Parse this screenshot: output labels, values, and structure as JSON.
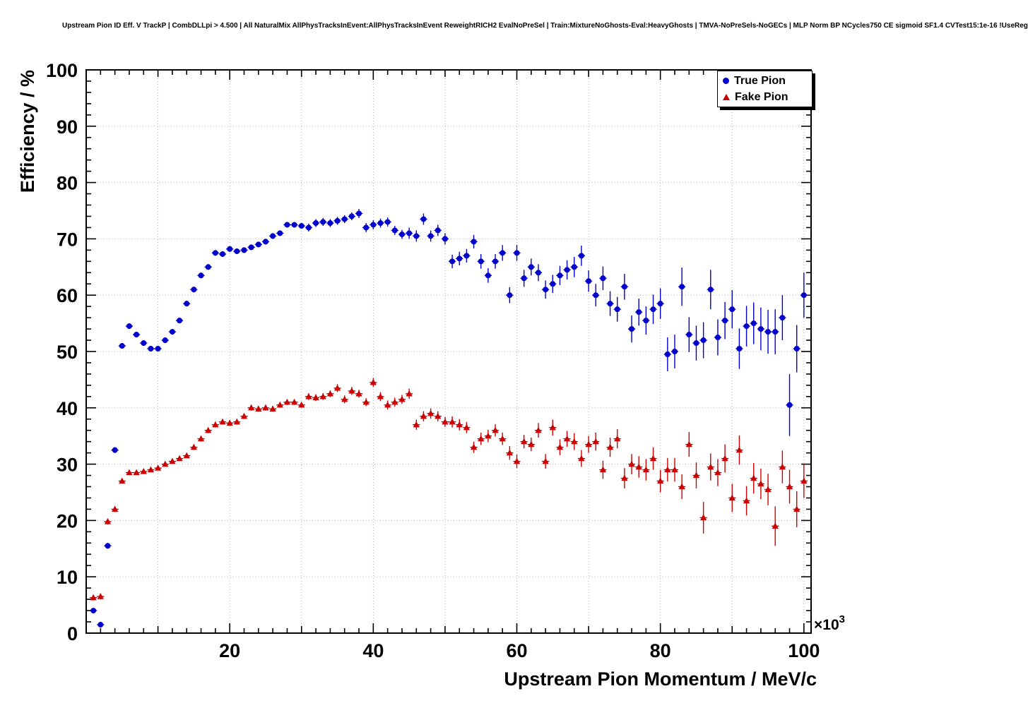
{
  "page": {
    "title": "Upstream Pion ID Eff. V TrackP | CombDLLpi > 4.500 | All NaturalMix AllPhysTracksInEvent:AllPhysTracksInEvent ReweightRICH2 EvalNoPreSel | Train:MixtureNoGhosts-Eval:HeavyGhosts | TMVA-NoPreSels-NoGECs | MLP Norm BP NCycles750 CE sigmoid SF1.4 CVTest15:1e-16 !UseReg"
  },
  "chart_data": {
    "type": "scatter",
    "title": "Upstream Pion ID Eff. V TrackP | CombDLLpi > 4.500 | All NaturalMix AllPhysTracksInEvent:AllPhysTracksInEvent ReweightRICH2 EvalNoPreSel | Train:MixtureNoGhosts-Eval:HeavyGhosts | TMVA-NoPreSels-NoGECs | MLP Norm BP NCycles750 CE sigmoid SF1.4 CVTest15:1e-16 !UseReg",
    "xlabel": "Upstream Pion Momentum / MeV/c",
    "ylabel": "Efficiency / %",
    "x_units": "10^3 MeV/c",
    "x_exponent": {
      "base": "×10",
      "sup": "3"
    },
    "xlim": [
      0,
      101
    ],
    "ylim": [
      0,
      100
    ],
    "x_ticks": [
      20,
      40,
      60,
      80,
      100
    ],
    "y_ticks": [
      0,
      10,
      20,
      30,
      40,
      50,
      60,
      70,
      80,
      90,
      100
    ],
    "grid": true,
    "legend_position": "top-right",
    "series": [
      {
        "name": "True Pion",
        "marker": "circle",
        "color": "#0000cc",
        "points": [
          [
            1,
            4.0,
            0.4
          ],
          [
            2,
            1.5,
            0.4
          ],
          [
            3,
            15.5,
            0.5
          ],
          [
            4,
            32.5,
            0.5
          ],
          [
            5,
            51.0,
            0.5
          ],
          [
            6,
            54.5,
            0.5
          ],
          [
            7,
            53.0,
            0.5
          ],
          [
            8,
            51.5,
            0.5
          ],
          [
            9,
            50.5,
            0.5
          ],
          [
            10,
            50.5,
            0.5
          ],
          [
            11,
            52.0,
            0.5
          ],
          [
            12,
            53.5,
            0.5
          ],
          [
            13,
            55.5,
            0.5
          ],
          [
            14,
            58.5,
            0.5
          ],
          [
            15,
            61.0,
            0.5
          ],
          [
            16,
            63.5,
            0.5
          ],
          [
            17,
            65.0,
            0.5
          ],
          [
            18,
            67.5,
            0.5
          ],
          [
            19,
            67.3,
            0.5
          ],
          [
            20,
            68.2,
            0.5
          ],
          [
            21,
            67.8,
            0.5
          ],
          [
            22,
            68.0,
            0.5
          ],
          [
            23,
            68.5,
            0.5
          ],
          [
            24,
            69.0,
            0.5
          ],
          [
            25,
            69.5,
            0.5
          ],
          [
            26,
            70.5,
            0.5
          ],
          [
            27,
            71.0,
            0.5
          ],
          [
            28,
            72.5,
            0.5
          ],
          [
            29,
            72.5,
            0.5
          ],
          [
            30,
            72.3,
            0.5
          ],
          [
            31,
            72.0,
            0.7
          ],
          [
            32,
            72.8,
            0.7
          ],
          [
            33,
            73.0,
            0.7
          ],
          [
            34,
            72.8,
            0.7
          ],
          [
            35,
            73.2,
            0.7
          ],
          [
            36,
            73.5,
            0.7
          ],
          [
            37,
            74.0,
            0.7
          ],
          [
            38,
            74.5,
            0.8
          ],
          [
            39,
            72.0,
            0.8
          ],
          [
            40,
            72.5,
            0.8
          ],
          [
            41,
            72.8,
            0.8
          ],
          [
            42,
            73.0,
            0.8
          ],
          [
            43,
            71.5,
            0.8
          ],
          [
            44,
            70.8,
            0.8
          ],
          [
            45,
            71.0,
            1.0
          ],
          [
            46,
            70.5,
            1.0
          ],
          [
            47,
            73.5,
            1.0
          ],
          [
            48,
            70.5,
            1.0
          ],
          [
            49,
            71.5,
            1.0
          ],
          [
            50,
            70.0,
            1.0
          ],
          [
            51,
            66.0,
            1.2
          ],
          [
            52,
            66.5,
            1.2
          ],
          [
            53,
            67.0,
            1.2
          ],
          [
            54,
            69.5,
            1.2
          ],
          [
            55,
            66.0,
            1.3
          ],
          [
            56,
            63.5,
            1.3
          ],
          [
            57,
            66.0,
            1.3
          ],
          [
            58,
            67.5,
            1.4
          ],
          [
            59,
            60.0,
            1.4
          ],
          [
            60,
            67.5,
            1.4
          ],
          [
            61,
            63.0,
            1.5
          ],
          [
            62,
            65.0,
            1.5
          ],
          [
            63,
            64.0,
            1.5
          ],
          [
            64,
            61.0,
            1.6
          ],
          [
            65,
            62.0,
            1.6
          ],
          [
            66,
            63.5,
            1.7
          ],
          [
            67,
            64.5,
            1.7
          ],
          [
            68,
            65.0,
            1.8
          ],
          [
            69,
            67.0,
            1.8
          ],
          [
            70,
            62.5,
            1.9
          ],
          [
            71,
            60.0,
            2.0
          ],
          [
            72,
            63.0,
            2.1
          ],
          [
            73,
            58.5,
            2.2
          ],
          [
            74,
            57.5,
            2.2
          ],
          [
            75,
            61.5,
            2.3
          ],
          [
            76,
            54.0,
            2.4
          ],
          [
            77,
            57.0,
            2.4
          ],
          [
            78,
            55.5,
            2.5
          ],
          [
            79,
            57.5,
            2.6
          ],
          [
            80,
            58.5,
            2.7
          ],
          [
            81,
            49.5,
            3.0
          ],
          [
            82,
            50.0,
            3.0
          ],
          [
            83,
            61.5,
            3.4
          ],
          [
            84,
            53.0,
            3.1
          ],
          [
            85,
            51.5,
            3.1
          ],
          [
            86,
            52.0,
            3.2
          ],
          [
            87,
            61.0,
            3.5
          ],
          [
            88,
            52.5,
            3.2
          ],
          [
            89,
            55.5,
            3.3
          ],
          [
            90,
            57.5,
            3.4
          ],
          [
            91,
            50.5,
            3.6
          ],
          [
            92,
            54.5,
            3.6
          ],
          [
            93,
            55.0,
            3.7
          ],
          [
            94,
            54.0,
            3.8
          ],
          [
            95,
            53.5,
            3.9
          ],
          [
            96,
            53.5,
            4.0
          ],
          [
            97,
            56.0,
            4.0
          ],
          [
            98,
            40.5,
            5.5
          ],
          [
            99,
            50.5,
            4.2
          ],
          [
            100,
            60.0,
            4.0
          ]
        ]
      },
      {
        "name": "Fake Pion",
        "marker": "triangle",
        "color": "#cc0000",
        "points": [
          [
            1,
            6.3,
            0.5
          ],
          [
            2,
            6.5,
            0.5
          ],
          [
            3,
            19.8,
            0.5
          ],
          [
            4,
            22.0,
            0.5
          ],
          [
            5,
            27.0,
            0.4
          ],
          [
            6,
            28.5,
            0.4
          ],
          [
            7,
            28.5,
            0.4
          ],
          [
            8,
            28.7,
            0.4
          ],
          [
            9,
            29.0,
            0.4
          ],
          [
            10,
            29.3,
            0.4
          ],
          [
            11,
            30.0,
            0.4
          ],
          [
            12,
            30.5,
            0.4
          ],
          [
            13,
            31.0,
            0.4
          ],
          [
            14,
            31.5,
            0.4
          ],
          [
            15,
            33.0,
            0.5
          ],
          [
            16,
            34.5,
            0.5
          ],
          [
            17,
            36.0,
            0.5
          ],
          [
            18,
            37.0,
            0.5
          ],
          [
            19,
            37.5,
            0.5
          ],
          [
            20,
            37.3,
            0.5
          ],
          [
            21,
            37.5,
            0.5
          ],
          [
            22,
            38.5,
            0.5
          ],
          [
            23,
            40.0,
            0.5
          ],
          [
            24,
            39.8,
            0.5
          ],
          [
            25,
            40.0,
            0.5
          ],
          [
            26,
            39.8,
            0.5
          ],
          [
            27,
            40.5,
            0.5
          ],
          [
            28,
            41.0,
            0.5
          ],
          [
            29,
            41.0,
            0.5
          ],
          [
            30,
            40.5,
            0.5
          ],
          [
            31,
            42.0,
            0.6
          ],
          [
            32,
            41.8,
            0.6
          ],
          [
            33,
            42.0,
            0.6
          ],
          [
            34,
            42.5,
            0.6
          ],
          [
            35,
            43.5,
            0.7
          ],
          [
            36,
            41.5,
            0.7
          ],
          [
            37,
            43.0,
            0.7
          ],
          [
            38,
            42.5,
            0.7
          ],
          [
            39,
            41.0,
            0.7
          ],
          [
            40,
            44.5,
            0.8
          ],
          [
            41,
            42.0,
            0.8
          ],
          [
            42,
            40.5,
            0.8
          ],
          [
            43,
            41.0,
            0.8
          ],
          [
            44,
            41.5,
            0.8
          ],
          [
            45,
            42.5,
            0.9
          ],
          [
            46,
            37.0,
            0.9
          ],
          [
            47,
            38.5,
            0.9
          ],
          [
            48,
            39.0,
            0.9
          ],
          [
            49,
            38.5,
            0.9
          ],
          [
            50,
            37.5,
            0.9
          ],
          [
            51,
            37.5,
            1.0
          ],
          [
            52,
            37.0,
            1.0
          ],
          [
            53,
            36.5,
            1.0
          ],
          [
            54,
            33.0,
            1.0
          ],
          [
            55,
            34.5,
            1.1
          ],
          [
            56,
            35.0,
            1.1
          ],
          [
            57,
            36.0,
            1.1
          ],
          [
            58,
            34.5,
            1.1
          ],
          [
            59,
            32.0,
            1.2
          ],
          [
            60,
            30.5,
            1.2
          ],
          [
            61,
            34.0,
            1.2
          ],
          [
            62,
            33.5,
            1.2
          ],
          [
            63,
            36.0,
            1.3
          ],
          [
            64,
            30.5,
            1.3
          ],
          [
            65,
            36.5,
            1.4
          ],
          [
            66,
            33.0,
            1.4
          ],
          [
            67,
            34.5,
            1.4
          ],
          [
            68,
            34.0,
            1.5
          ],
          [
            69,
            31.0,
            1.5
          ],
          [
            70,
            33.5,
            1.5
          ],
          [
            71,
            34.0,
            1.6
          ],
          [
            72,
            29.0,
            1.6
          ],
          [
            73,
            33.0,
            1.7
          ],
          [
            74,
            34.5,
            1.7
          ],
          [
            75,
            27.5,
            1.8
          ],
          [
            76,
            30.0,
            1.8
          ],
          [
            77,
            29.5,
            1.9
          ],
          [
            78,
            29.0,
            1.9
          ],
          [
            79,
            31.0,
            2.0
          ],
          [
            80,
            27.0,
            2.0
          ],
          [
            81,
            29.0,
            2.1
          ],
          [
            82,
            29.0,
            2.1
          ],
          [
            83,
            26.0,
            2.2
          ],
          [
            84,
            33.5,
            2.2
          ],
          [
            85,
            28.0,
            2.3
          ],
          [
            86,
            20.5,
            2.8
          ],
          [
            87,
            29.5,
            2.4
          ],
          [
            88,
            28.5,
            2.4
          ],
          [
            89,
            31.0,
            2.5
          ],
          [
            90,
            24.0,
            2.5
          ],
          [
            91,
            32.5,
            2.6
          ],
          [
            92,
            23.5,
            2.6
          ],
          [
            93,
            27.5,
            2.7
          ],
          [
            94,
            26.5,
            2.7
          ],
          [
            95,
            25.5,
            2.8
          ],
          [
            96,
            19.0,
            3.5
          ],
          [
            97,
            29.5,
            2.9
          ],
          [
            98,
            26.0,
            3.0
          ],
          [
            99,
            22.0,
            3.2
          ],
          [
            100,
            27.0,
            3.0
          ]
        ]
      }
    ]
  },
  "legend": {
    "items": [
      {
        "label": "True Pion",
        "marker": "circle-icon",
        "color": "#0000cc"
      },
      {
        "label": "Fake Pion",
        "marker": "triangle-icon",
        "color": "#cc0000"
      }
    ]
  }
}
